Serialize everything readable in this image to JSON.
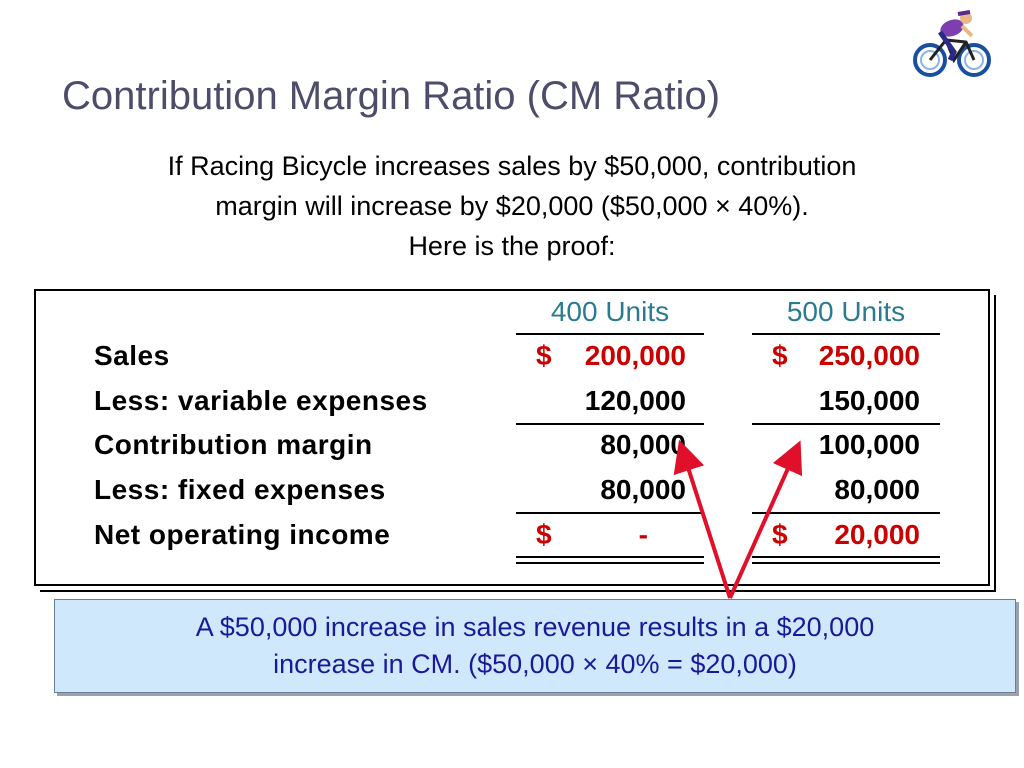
{
  "title": "Contribution Margin Ratio (CM Ratio)",
  "intro": {
    "line1": "If Racing Bicycle increases sales by $50,000, contribution",
    "line2": "margin will increase by $20,000 ($50,000 × 40%).",
    "line3": "Here is the proof:"
  },
  "icon": "bicycle-rider-clipart",
  "table": {
    "columns": [
      "400 Units",
      "500 Units"
    ],
    "rows": [
      {
        "label": "Sales",
        "col1_symbol": "$",
        "col1": "200,000",
        "col2_symbol": "$",
        "col2": "250,000"
      },
      {
        "label": "Less: variable expenses",
        "col1": "120,000",
        "col2": "150,000"
      },
      {
        "label": "Contribution margin",
        "col1": "80,000",
        "col2": "100,000"
      },
      {
        "label": "Less: fixed expenses",
        "col1": "80,000",
        "col2": "80,000"
      },
      {
        "label": "Net operating income",
        "col1_symbol": "$",
        "col1": "-",
        "col2_symbol": "$",
        "col2": "20,000"
      }
    ]
  },
  "callout": {
    "line1": "A $50,000 increase in sales revenue results in a $20,000",
    "line2": "increase in CM. ($50,000 × 40% = $20,000)"
  },
  "colors": {
    "title": "#4d4d6b",
    "header": "#2a7b8f",
    "emphasis": "#cc0000",
    "callout_bg": "#cfe8fb",
    "callout_text": "#1a1a99"
  }
}
